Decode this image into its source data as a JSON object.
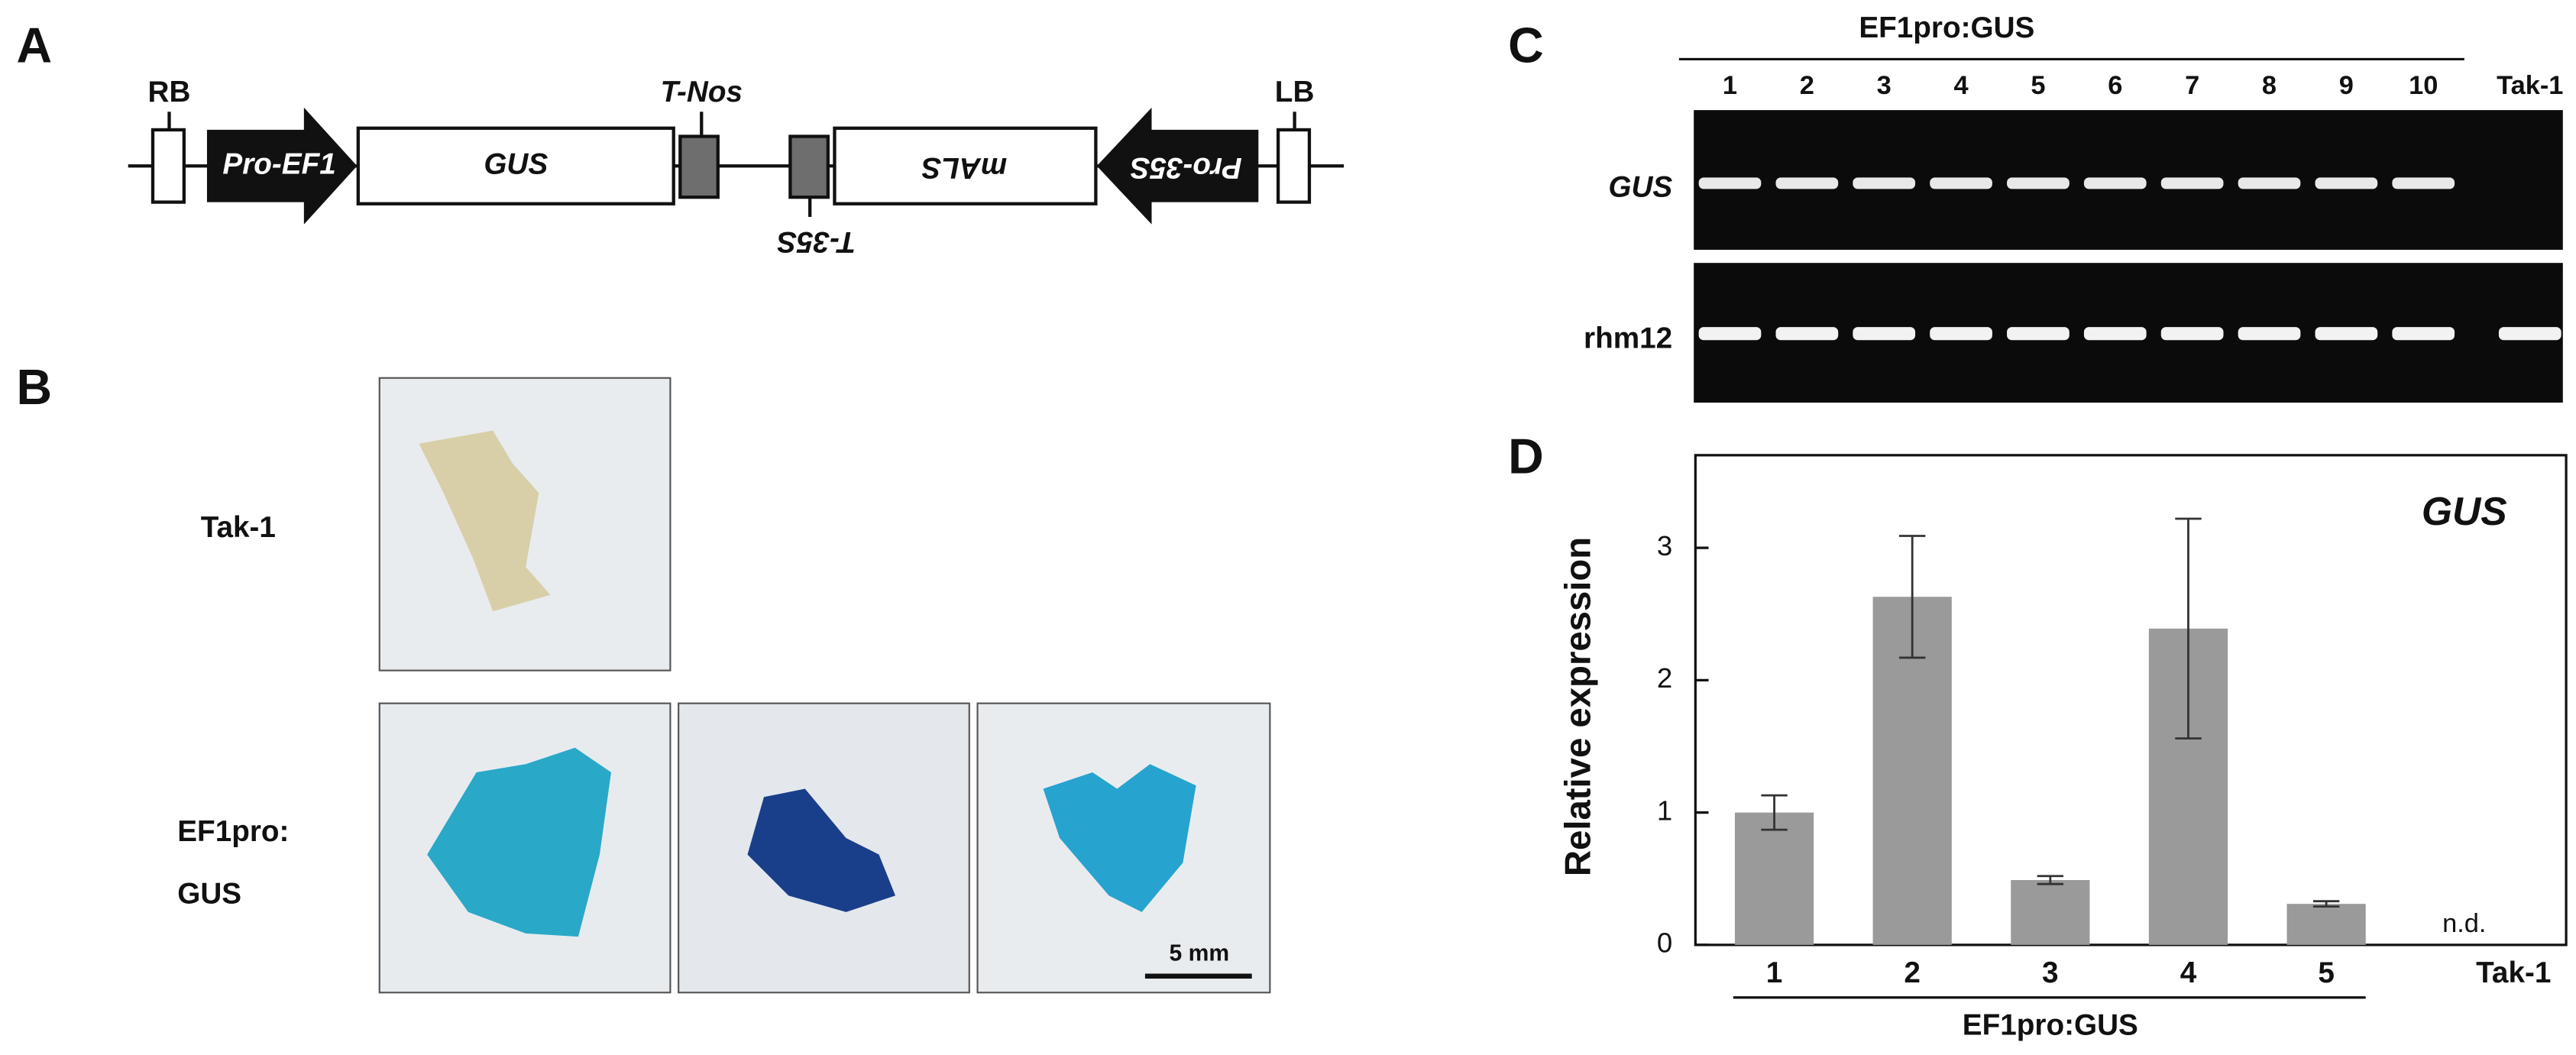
{
  "panel_labels": [
    "A",
    "B",
    "C",
    "D"
  ],
  "construct": {
    "elements": [
      "RB",
      "Pro-EF1",
      "GUS",
      "T-Nos",
      "T-35S",
      "mALS",
      "Pro-35S",
      "LB"
    ]
  },
  "images": {
    "rows": [
      {
        "label": [
          "Tak-1"
        ]
      },
      {
        "label": [
          "EF1pro:",
          "GUS"
        ]
      }
    ],
    "scale_bar": "5 mm"
  },
  "gel": {
    "group_label": "EF1pro:GUS",
    "lanes": [
      "1",
      "2",
      "3",
      "4",
      "5",
      "6",
      "7",
      "8",
      "9",
      "10",
      "Tak-1"
    ],
    "rows": [
      "GUS",
      "rhm12"
    ]
  },
  "chart_data": {
    "type": "bar",
    "ylabel": "Relative expression",
    "annotation": "GUS",
    "categories": [
      "1",
      "2",
      "3",
      "4",
      "5",
      "Tak-1"
    ],
    "values": [
      1.0,
      2.63,
      0.49,
      2.39,
      0.31,
      null
    ],
    "errors": [
      0.13,
      0.46,
      0.03,
      0.83,
      0.02,
      null
    ],
    "value_labels": [
      null,
      null,
      null,
      null,
      null,
      "n.d."
    ],
    "group_label": "EF1pro:GUS",
    "color": "#9a9a9a",
    "ylim": [
      0,
      3.7
    ],
    "yticks": [
      0,
      1,
      2,
      3
    ]
  }
}
